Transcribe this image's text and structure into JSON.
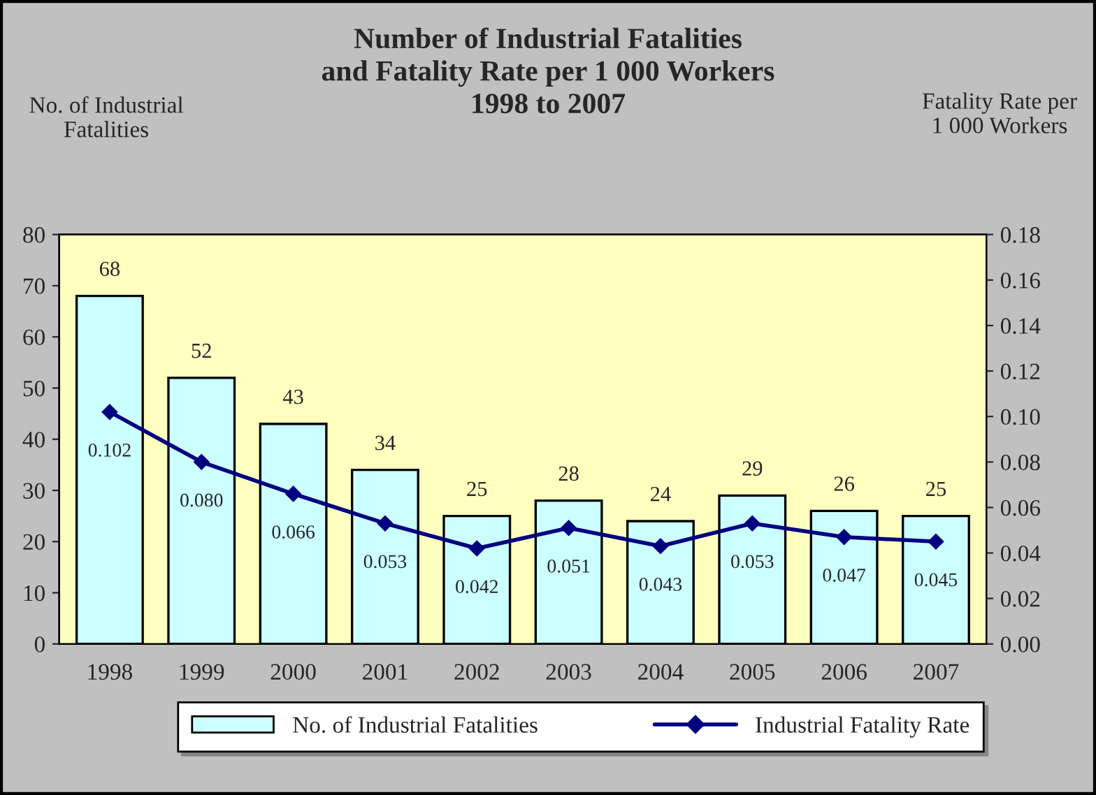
{
  "chart_data": {
    "type": "bar",
    "title": "Number of Industrial Fatalities\nand Fatality Rate per 1 000 Workers\n1998 to 2007",
    "ylabel": "No. of Industrial\nFatalities",
    "y2label": "Fatality Rate per\n1 000 Workers",
    "categories": [
      "1998",
      "1999",
      "2000",
      "2001",
      "2002",
      "2003",
      "2004",
      "2005",
      "2006",
      "2007"
    ],
    "series": [
      {
        "name": "No. of Industrial Fatalities",
        "color": "#ccffff",
        "values": [
          68,
          52,
          43,
          34,
          25,
          28,
          24,
          29,
          26,
          25
        ]
      },
      {
        "name": "Industrial Fatality Rate",
        "type": "line",
        "axis": "y2",
        "color": "#000080",
        "marker": "diamond",
        "values": [
          0.102,
          0.08,
          0.066,
          0.053,
          0.042,
          0.051,
          0.043,
          0.053,
          0.047,
          0.045
        ],
        "value_labels": [
          "0.102",
          "0.080",
          "0.066",
          "0.053",
          "0.042",
          "0.051",
          "0.043",
          "0.053",
          "0.047",
          "0.045"
        ]
      }
    ],
    "data_labels": true,
    "ylim": [
      0,
      80
    ],
    "yticks": [
      0,
      10,
      20,
      30,
      40,
      50,
      60,
      70,
      80
    ],
    "y2lim": [
      0,
      0.18
    ],
    "y2ticks": [
      {
        "value": 0,
        "label": "0.00"
      },
      {
        "value": 0.02,
        "label": "0.02"
      },
      {
        "value": 0.04,
        "label": "0.04"
      },
      {
        "value": 0.06,
        "label": "0.06"
      },
      {
        "value": 0.08,
        "label": "0.08"
      },
      {
        "value": 0.1,
        "label": "0.10"
      },
      {
        "value": 0.12,
        "label": "0.12"
      },
      {
        "value": 0.14,
        "label": "0.14"
      },
      {
        "value": 0.16,
        "label": "0.16"
      },
      {
        "value": 0.18,
        "label": "0.18"
      }
    ],
    "grid": false,
    "legend": "bottom"
  }
}
